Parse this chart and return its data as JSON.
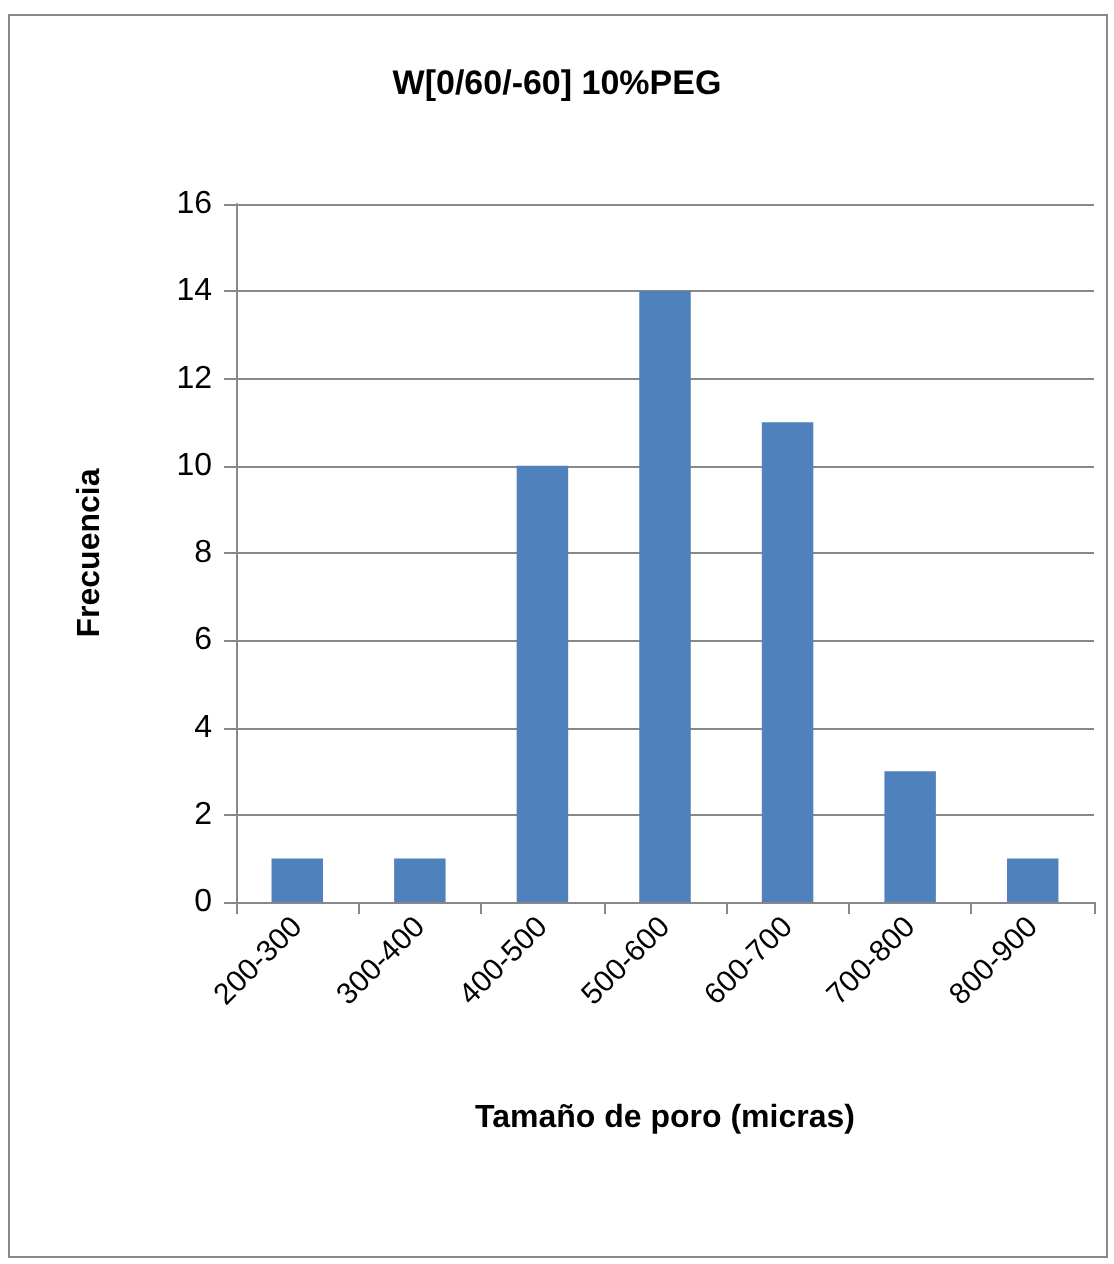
{
  "chart_data": {
    "type": "bar",
    "title": "W[0/60/-60] 10%PEG",
    "xlabel": "Tamaño de poro (micras)",
    "ylabel": "Frecuencia",
    "categories": [
      "200-300",
      "300-400",
      "400-500",
      "500-600",
      "600-700",
      "700-800",
      "800-900"
    ],
    "values": [
      1,
      1,
      10,
      14,
      11,
      3,
      1
    ],
    "color": "#4f81bd",
    "ylim": [
      0,
      16
    ],
    "yticks": [
      0,
      2,
      4,
      6,
      8,
      10,
      12,
      14,
      16
    ],
    "grid": "y"
  }
}
